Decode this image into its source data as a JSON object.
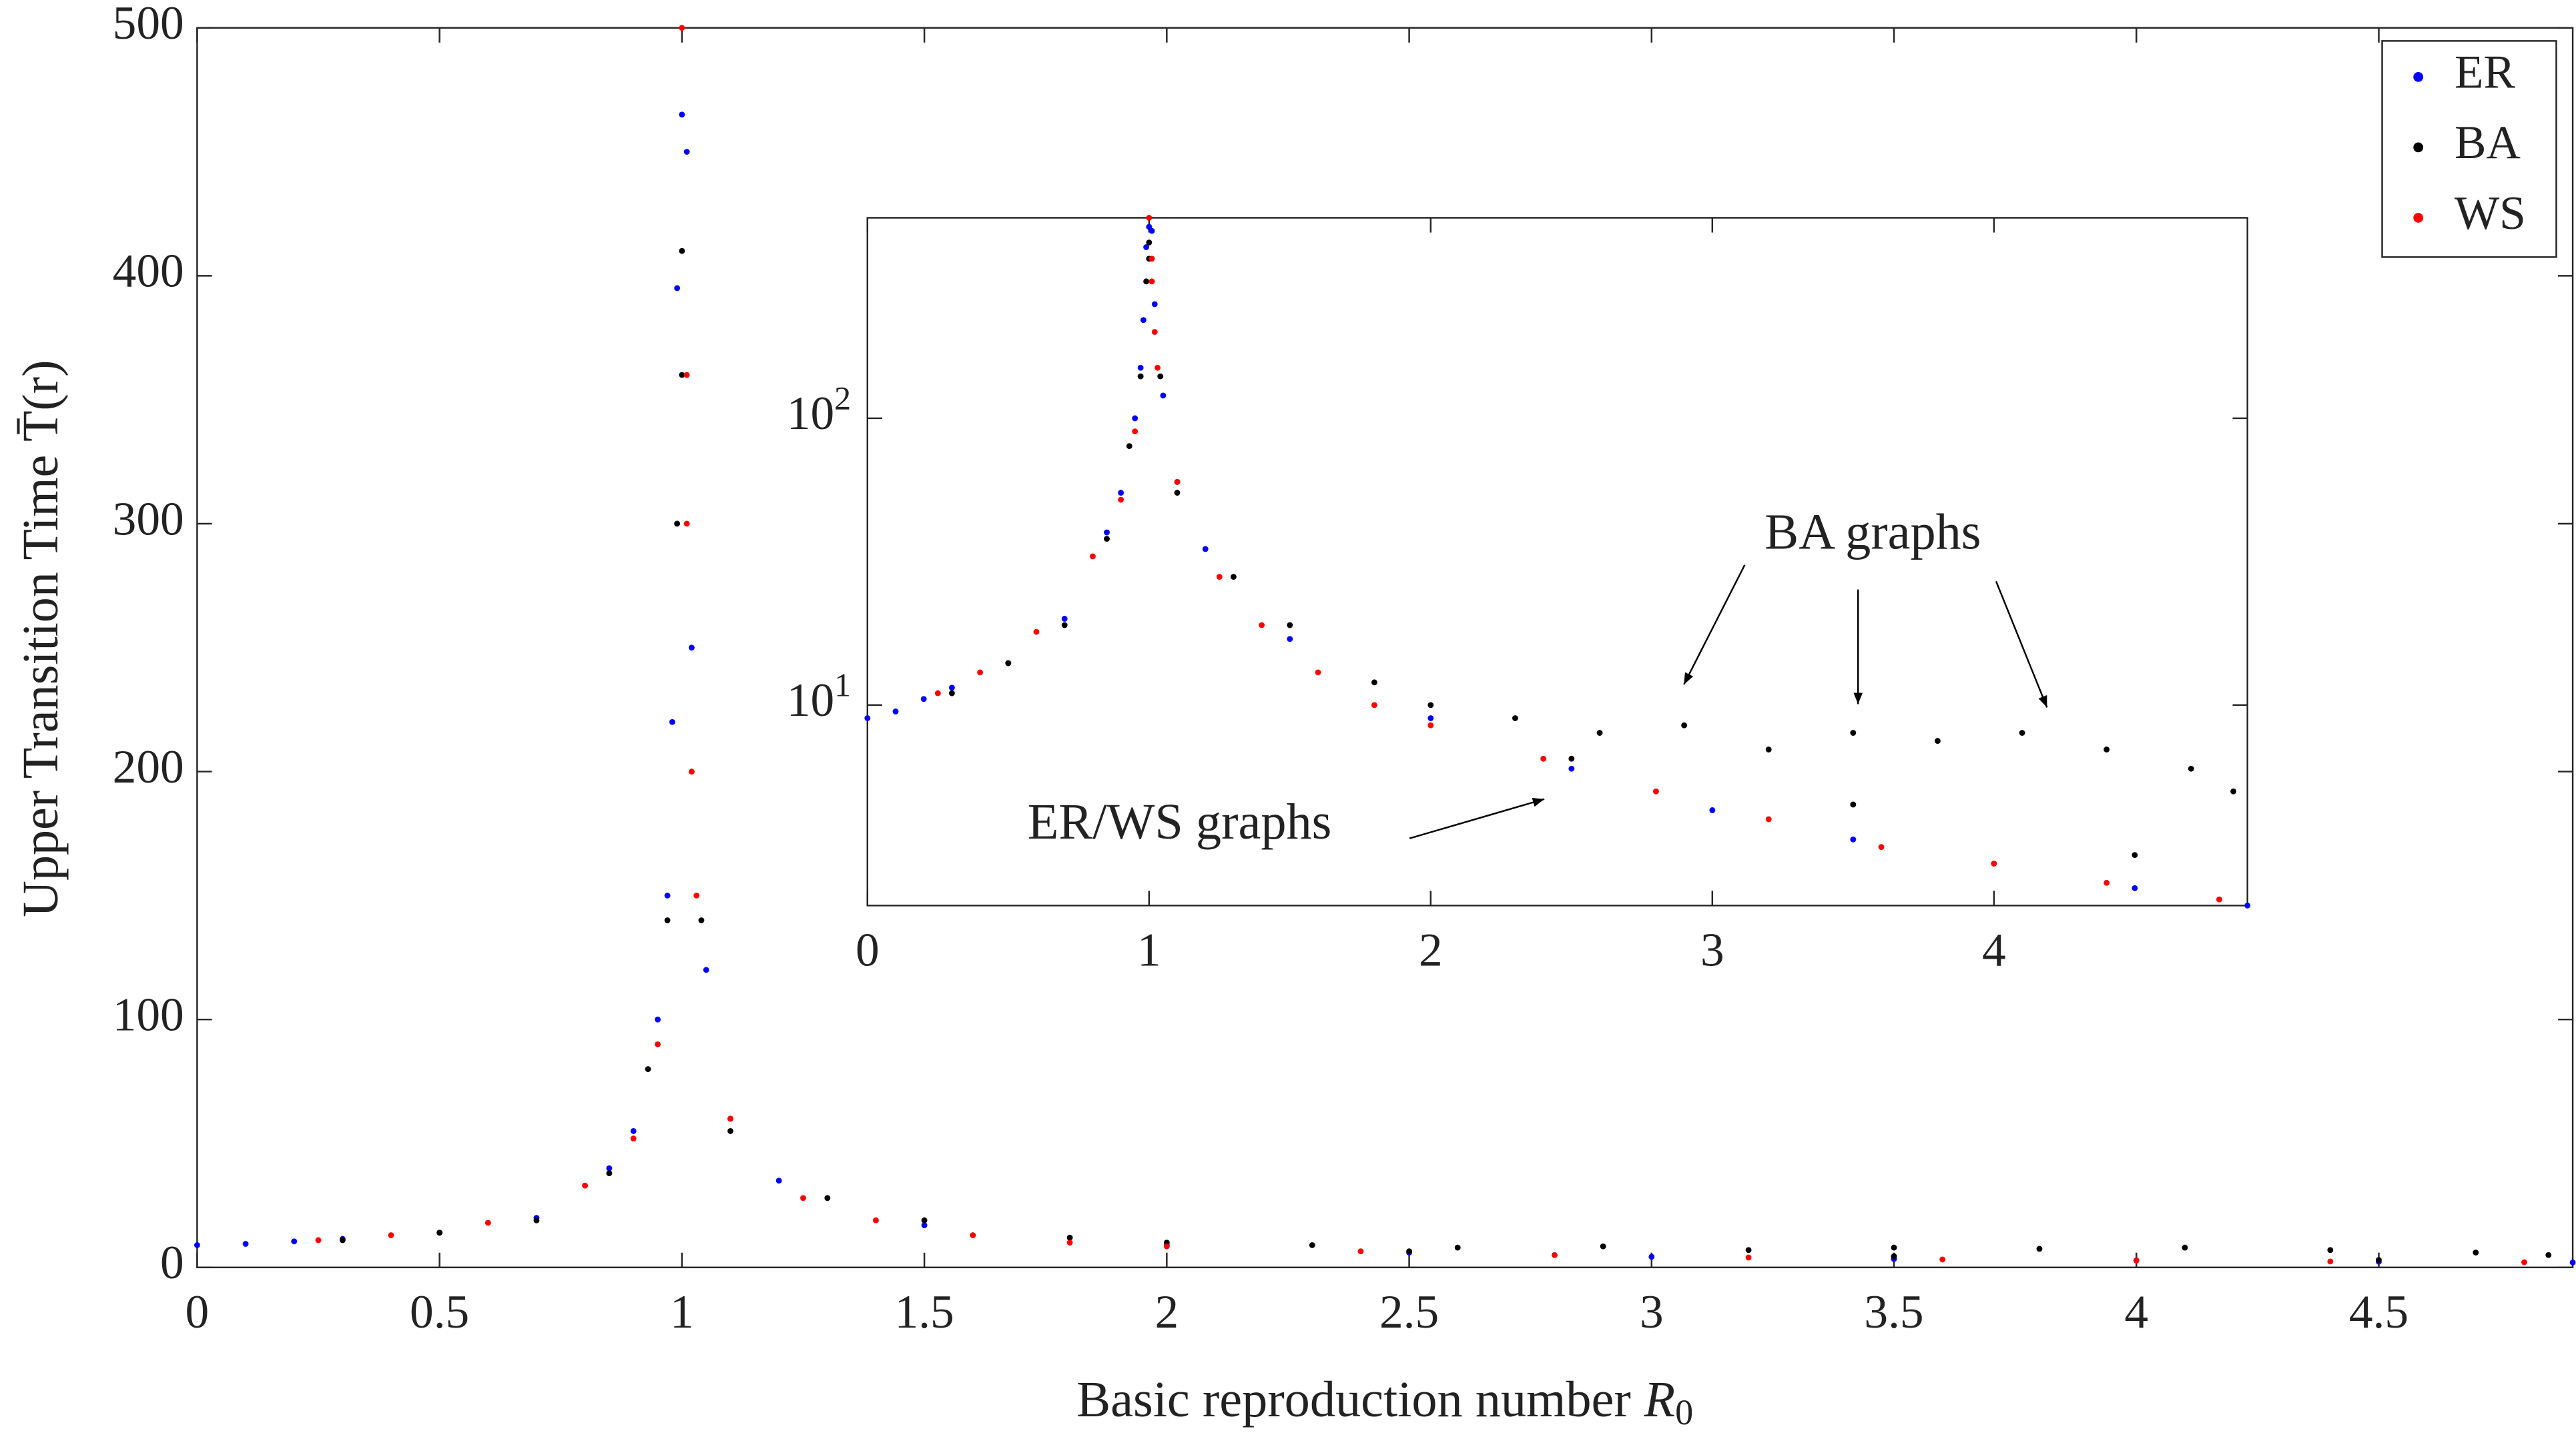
{
  "chart_data": [
    {
      "type": "scatter",
      "xlabel": {
        "text": "Basic reproduction number",
        "symbol": "R",
        "subscript": "0"
      },
      "ylabel": {
        "text": "Upper Transition Time",
        "symbol": "T̄(r)"
      },
      "xlim": [
        0,
        4.9
      ],
      "ylim": [
        0,
        500
      ],
      "xticks": [
        0,
        0.5,
        1,
        1.5,
        2,
        2.5,
        3,
        3.5,
        4,
        4.5
      ],
      "yticks": [
        0,
        100,
        200,
        300,
        400,
        500
      ],
      "legend": "upper right",
      "series": [
        {
          "name": "ER",
          "color": "#0000ff",
          "x": [
            0,
            0.1,
            0.2,
            0.3,
            0.5,
            0.7,
            0.85,
            0.9,
            0.95,
            0.97,
            0.98,
            0.99,
            1.0,
            1.01,
            1.02,
            1.05,
            1.1,
            1.2,
            1.5,
            2,
            2.5,
            3,
            3.5,
            4,
            4.5,
            4.9
          ],
          "values": [
            9,
            9.5,
            10.5,
            11.5,
            14,
            20,
            40,
            55,
            100,
            150,
            220,
            395,
            465,
            450,
            250,
            120,
            60,
            35,
            17,
            9,
            6,
            4.3,
            3.4,
            2.8,
            2.3,
            2.0
          ]
        },
        {
          "name": "BA",
          "color": "#000000",
          "x": [
            0.3,
            0.5,
            0.7,
            0.85,
            0.93,
            0.97,
            0.99,
            1.0,
            1.0,
            1.04,
            1.1,
            1.3,
            1.5,
            1.8,
            2,
            2.3,
            2.5,
            2.6,
            2.9,
            3.2,
            3.5,
            3.5,
            3.8,
            4.1,
            4.4,
            4.5,
            4.7,
            4.85
          ],
          "values": [
            11,
            14,
            19,
            38,
            80,
            140,
            300,
            410,
            360,
            140,
            55,
            28,
            19,
            12,
            10,
            9,
            6.5,
            8,
            8.5,
            7,
            8,
            4.5,
            7.5,
            8,
            7,
            3,
            6,
            5
          ]
        },
        {
          "name": "WS",
          "color": "#ff0000",
          "x": [
            0.25,
            0.4,
            0.6,
            0.8,
            0.9,
            0.95,
            1.0,
            1.01,
            1.01,
            1.02,
            1.03,
            1.1,
            1.25,
            1.4,
            1.6,
            1.8,
            2.0,
            2.4,
            2.8,
            3.2,
            3.6,
            4.0,
            4.4,
            4.8
          ],
          "values": [
            11,
            13,
            18,
            33,
            52,
            90,
            500,
            360,
            300,
            200,
            150,
            60,
            28,
            19,
            13,
            10,
            8.5,
            6.5,
            5,
            4,
            3.2,
            2.8,
            2.4,
            2.1
          ]
        }
      ]
    },
    {
      "type": "scatter",
      "yscale": "log",
      "xlim": [
        0,
        4.9
      ],
      "ylim": [
        2,
        500
      ],
      "xticks": [
        0,
        1,
        2,
        3,
        4
      ],
      "yticks": [
        {
          "value": 10,
          "label": "10",
          "sup": "1"
        },
        {
          "value": 100,
          "label": "10",
          "sup": "2"
        }
      ],
      "annotations": [
        "BA graphs",
        "ER/WS graphs"
      ]
    }
  ]
}
